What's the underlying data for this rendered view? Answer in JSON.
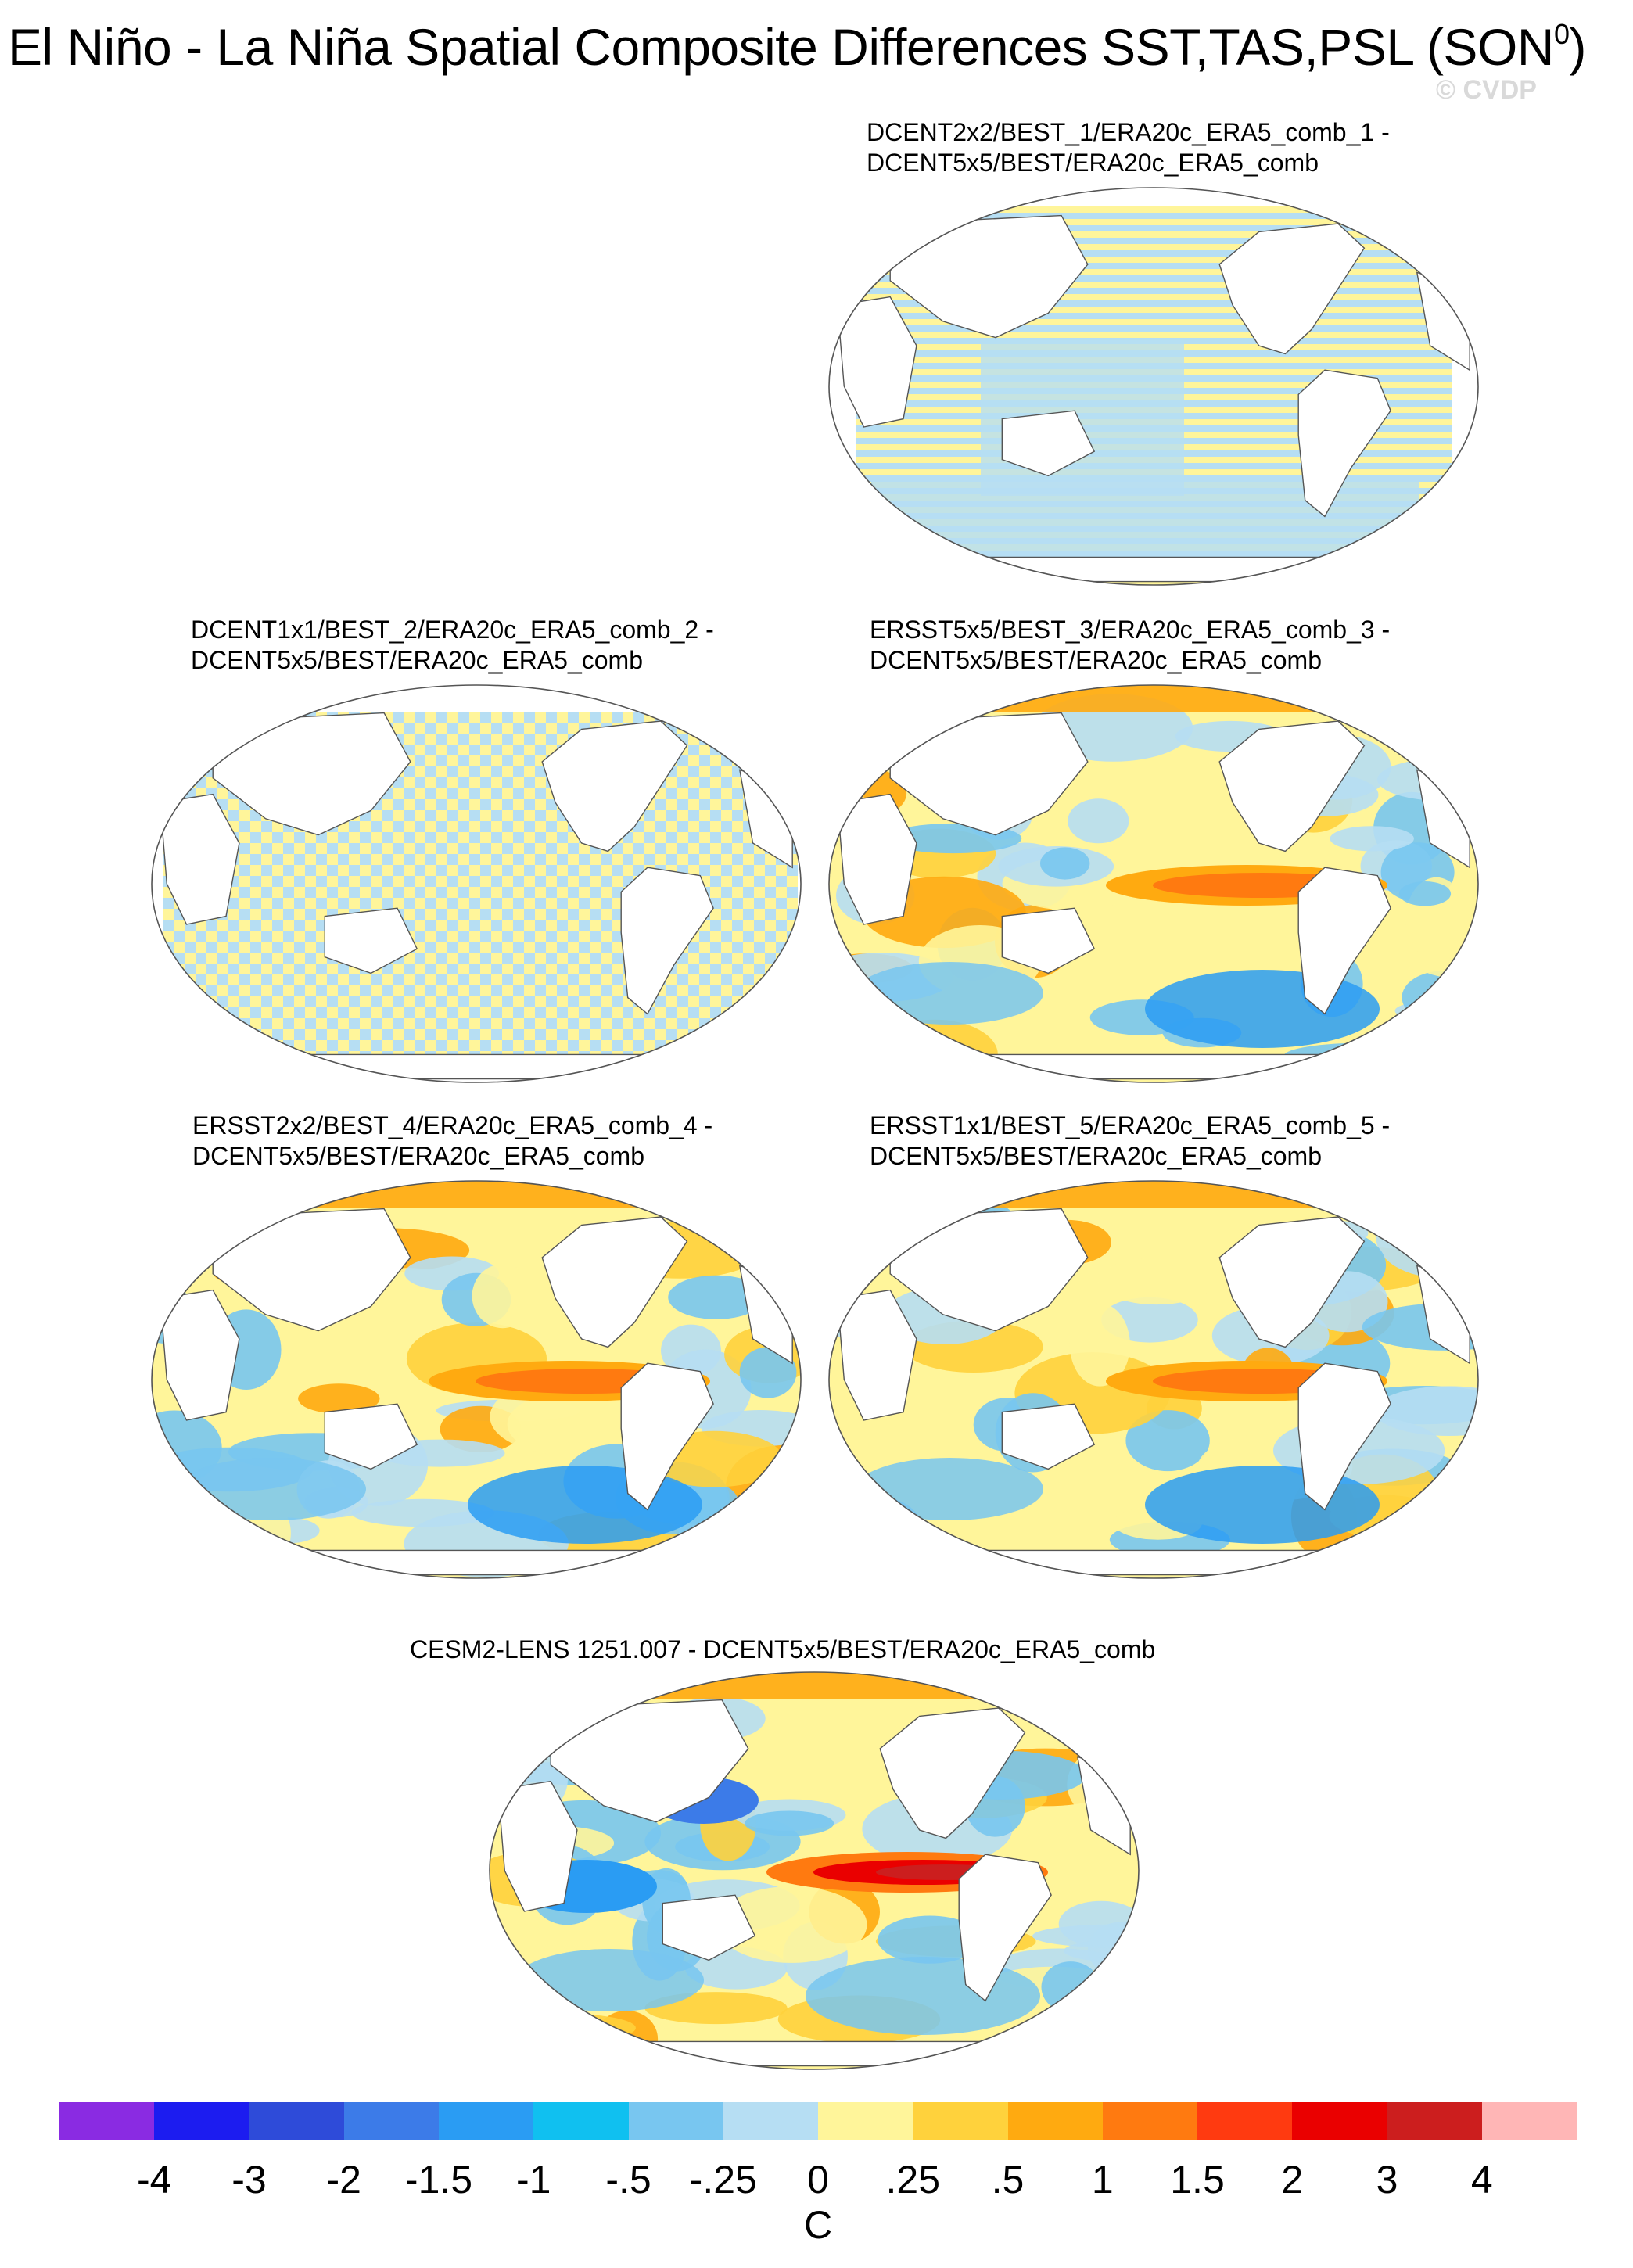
{
  "page": {
    "title_main": "El Niño - La Niña Spatial Composite Differences SST,TAS,PSL (SON",
    "title_sup": "0",
    "title_close": ")",
    "watermark": "© CVDP"
  },
  "panels": [
    {
      "id": "p1",
      "label_line1": "DCENT2x2/BEST_1/ERA20c_ERA5_comb_1 -",
      "label_line2": "DCENT5x5/BEST/ERA20c_ERA5_comb",
      "pattern": "stripes"
    },
    {
      "id": "p2",
      "label_line1": "DCENT1x1/BEST_2/ERA20c_ERA5_comb_2 -",
      "label_line2": "DCENT5x5/BEST/ERA20c_ERA5_comb",
      "pattern": "checker"
    },
    {
      "id": "p3",
      "label_line1": "ERSST5x5/BEST_3/ERA20c_ERA5_comb_3 -",
      "label_line2": "DCENT5x5/BEST/ERA20c_ERA5_comb",
      "pattern": "enso"
    },
    {
      "id": "p4",
      "label_line1": "ERSST2x2/BEST_4/ERA20c_ERA5_comb_4 -",
      "label_line2": "DCENT5x5/BEST/ERA20c_ERA5_comb",
      "pattern": "enso"
    },
    {
      "id": "p5",
      "label_line1": "ERSST1x1/BEST_5/ERA20c_ERA5_comb_5 -",
      "label_line2": "DCENT5x5/BEST/ERA20c_ERA5_comb",
      "pattern": "enso"
    },
    {
      "id": "p6",
      "label_line1": "CESM2-LENS 1251.007 - DCENT5x5/BEST/ERA20c_ERA5_comb",
      "label_line2": "",
      "pattern": "enso-strong"
    }
  ],
  "colorbar": {
    "colors": [
      "#8a2be2",
      "#1c1cf0",
      "#2e4bd9",
      "#3c7be8",
      "#2a9cf3",
      "#10c0f0",
      "#78c6f0",
      "#b6def3",
      "#fff59a",
      "#ffd23c",
      "#ffaa10",
      "#ff7a10",
      "#ff3a10",
      "#ea0000",
      "#cc1e1e",
      "#ffb6b6"
    ],
    "ticks": [
      "-4",
      "-3",
      "-2",
      "-1.5",
      "-1",
      "-.5",
      "-.25",
      "0",
      ".25",
      ".5",
      "1",
      "1.5",
      "2",
      "3",
      "4"
    ],
    "unit": "C"
  }
}
